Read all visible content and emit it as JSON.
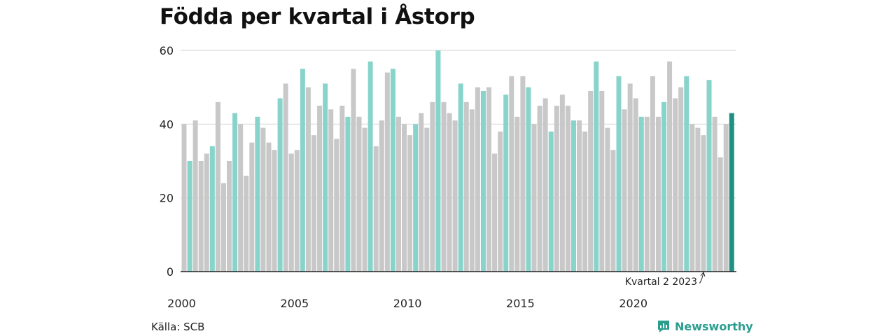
{
  "title": "Födda per kvartal i Åstorp",
  "source": "Källa: SCB",
  "brand": "Newsworthy",
  "brand_icon": "newsworthy-logo-icon",
  "colors": {
    "bar_default": "#c8c8c8",
    "bar_q1": "#88d4cb",
    "bar_latest": "#1f9182",
    "grid": "#d9d9d9",
    "axis": "#222222",
    "brand": "#2a9d8f"
  },
  "chart_data": {
    "type": "bar",
    "title": "Födda per kvartal i Åstorp",
    "xlabel": "",
    "ylabel": "",
    "ylim": [
      0,
      60
    ],
    "yticks": [
      0,
      20,
      40,
      60
    ],
    "xticks": [
      "2000",
      "2005",
      "2010",
      "2015",
      "2020"
    ],
    "grid": true,
    "highlight": "first quarter of each year in light teal; latest quarter in dark teal",
    "annotation": "Kvartal 2 2023",
    "series": [
      {
        "values": [
          40,
          30,
          41,
          30,
          32,
          34,
          46,
          24,
          30,
          43,
          40,
          26,
          35,
          42,
          39,
          35,
          33,
          47,
          51,
          32,
          33,
          55,
          50,
          37,
          45,
          51,
          44,
          36,
          45,
          42,
          55,
          42,
          39,
          57,
          34,
          41,
          54,
          55,
          42,
          40,
          37,
          40,
          43,
          39,
          46,
          60,
          46,
          43,
          41,
          51,
          46,
          44,
          50,
          49,
          50,
          32,
          38,
          48,
          53,
          42,
          53,
          50,
          40,
          45,
          47,
          38,
          45,
          48,
          45,
          41,
          41,
          38,
          49,
          57,
          49,
          39,
          33,
          53,
          44,
          51,
          47,
          42,
          42,
          53,
          42,
          46,
          57,
          47,
          50,
          53,
          40,
          39,
          37,
          52,
          42,
          31,
          40,
          43
        ]
      }
    ]
  }
}
